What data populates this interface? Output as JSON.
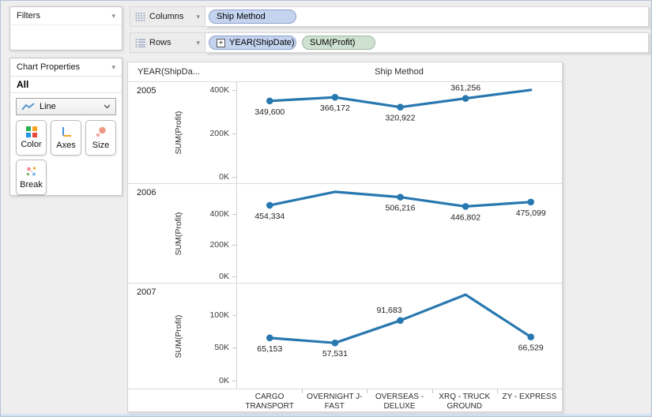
{
  "left_panel": {
    "filters": {
      "title": "Filters"
    },
    "chart_properties": {
      "title": "Chart Properties",
      "scope_label": "All",
      "chart_type_dropdown": {
        "value": "Line"
      },
      "buttons": [
        {
          "label": "Color"
        },
        {
          "label": "Axes"
        },
        {
          "label": "Size"
        },
        {
          "label": "Break"
        }
      ]
    }
  },
  "shelves": {
    "columns": {
      "label": "Columns",
      "pills": [
        {
          "text": "Ship Method"
        }
      ]
    },
    "rows": {
      "label": "Rows",
      "pills": [
        {
          "text": "YEAR(ShipDate)",
          "expander": "+"
        },
        {
          "text": "SUM(Profit)"
        }
      ]
    }
  },
  "colors": {
    "line": "#2878b0",
    "pill_blue": "#c4d4ef",
    "pill_green": "#cfe1d1",
    "color_icon": [
      "#27b24b",
      "#f6a221",
      "#2196e3",
      "#e8463c"
    ]
  },
  "chart_data": {
    "type": "line",
    "title": "Ship Method",
    "row_field_header": "YEAR(ShipDa...",
    "ylabel": "SUM(Profit)",
    "legend": "none",
    "grid": "off",
    "categories": [
      [
        "CARGO",
        "TRANSPORT"
      ],
      [
        "OVERNIGHT J-",
        "FAST"
      ],
      [
        "OVERSEAS -",
        "DELUXE"
      ],
      [
        "XRQ - TRUCK",
        "GROUND"
      ],
      [
        "ZY - EXPRESS"
      ]
    ],
    "panes": [
      {
        "year": "2005",
        "ylim": [
          0,
          436000
        ],
        "ticks": {
          "values": [
            400000,
            200000,
            0
          ],
          "labels": [
            "400K",
            "200K",
            "0K"
          ]
        },
        "points": [
          {
            "value": 349600,
            "label": "349,600",
            "label_pos": "below",
            "marker": true
          },
          {
            "value": 366172,
            "label": "366,172",
            "label_pos": "below",
            "marker": true
          },
          {
            "value": 320922,
            "label": "320,922",
            "label_pos": "below",
            "marker": true
          },
          {
            "value": 361256,
            "label": "361,256",
            "label_pos": "above",
            "marker": true
          },
          {
            "value": 400000,
            "label": null,
            "marker": false
          }
        ]
      },
      {
        "year": "2006",
        "ylim": [
          0,
          590000
        ],
        "ticks": {
          "values": [
            400000,
            200000,
            0
          ],
          "labels": [
            "400K",
            "200K",
            "0K"
          ]
        },
        "points": [
          {
            "value": 454334,
            "label": "454,334",
            "label_pos": "below",
            "marker": true
          },
          {
            "value": 540000,
            "label": null,
            "marker": false
          },
          {
            "value": 506216,
            "label": "506,216",
            "label_pos": "below",
            "marker": true
          },
          {
            "value": 446802,
            "label": "446,802",
            "label_pos": "below",
            "marker": true
          },
          {
            "value": 475099,
            "label": "475,099",
            "label_pos": "below",
            "marker": true
          }
        ]
      },
      {
        "year": "2007",
        "ylim": [
          0,
          148000
        ],
        "ticks": {
          "values": [
            100000,
            50000,
            0
          ],
          "labels": [
            "100K",
            "50K",
            "0K"
          ]
        },
        "points": [
          {
            "value": 65153,
            "label": "65,153",
            "label_pos": "below",
            "marker": true
          },
          {
            "value": 57531,
            "label": "57,531",
            "label_pos": "below",
            "marker": true
          },
          {
            "value": 91683,
            "label": "91,683",
            "label_pos": "above",
            "label_dx": -14,
            "marker": true
          },
          {
            "value": 131000,
            "label": null,
            "marker": false
          },
          {
            "value": 66529,
            "label": "66,529",
            "label_pos": "below",
            "marker": true
          }
        ]
      }
    ]
  }
}
